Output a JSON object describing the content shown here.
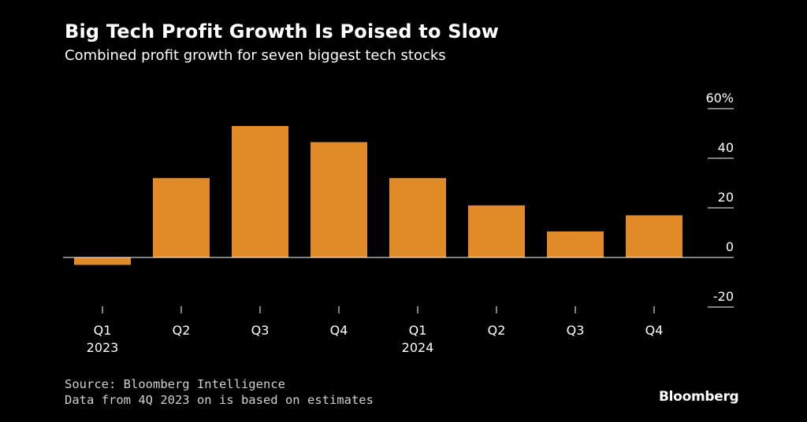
{
  "header": {
    "title": "Big Tech Profit Growth Is Poised to Slow",
    "subtitle": "Combined profit growth for seven biggest tech stocks"
  },
  "chart_data": {
    "type": "bar",
    "categories": [
      "Q1 2023",
      "Q2 2023",
      "Q3 2023",
      "Q4 2023",
      "Q1 2024",
      "Q2 2024",
      "Q3 2024",
      "Q4 2024"
    ],
    "tick_labels": [
      {
        "quarter": "Q1",
        "year": "2023"
      },
      {
        "quarter": "Q2",
        "year": ""
      },
      {
        "quarter": "Q3",
        "year": ""
      },
      {
        "quarter": "Q4",
        "year": ""
      },
      {
        "quarter": "Q1",
        "year": "2024"
      },
      {
        "quarter": "Q2",
        "year": ""
      },
      {
        "quarter": "Q3",
        "year": ""
      },
      {
        "quarter": "Q4",
        "year": ""
      }
    ],
    "values": [
      -3,
      32,
      53,
      46.5,
      32,
      21,
      10.5,
      17
    ],
    "ylim": [
      -20,
      60
    ],
    "yticks": [
      {
        "value": 60,
        "label": "60%"
      },
      {
        "value": 40,
        "label": "40"
      },
      {
        "value": 20,
        "label": "20"
      },
      {
        "value": 0,
        "label": "0"
      },
      {
        "value": -20,
        "label": "-20"
      }
    ],
    "y_axis_position": "right",
    "bar_color": "#E08B27"
  },
  "footer": {
    "source": "Source: Bloomberg Intelligence",
    "note": "Data from 4Q 2023 on is based on estimates"
  },
  "brand": {
    "logo_text": "Bloomberg"
  }
}
